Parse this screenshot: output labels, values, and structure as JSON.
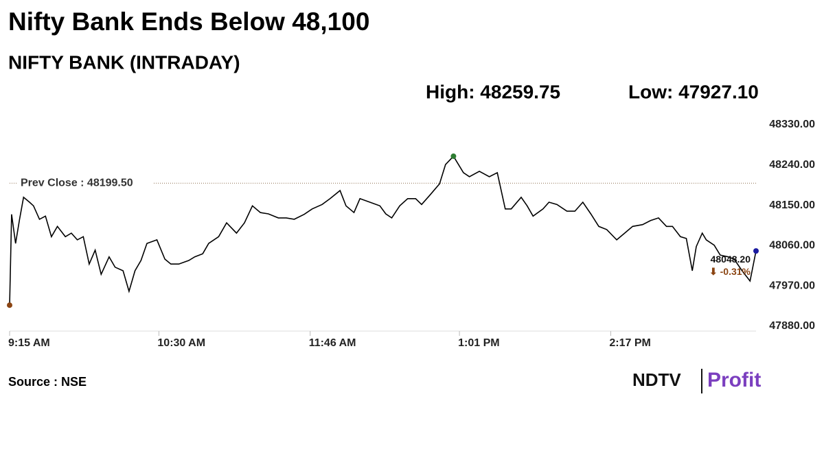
{
  "chart_data": {
    "type": "line",
    "title": "Nifty Bank Ends Below 48,100",
    "subtitle": "NIFTY BANK (INTRADAY)",
    "high_label": "High: 48259.75",
    "low_label": "Low: 47927.10",
    "source": "Source : NSE",
    "logo": [
      "NDTV",
      "Profit"
    ],
    "prev_close": {
      "value": 48199.5,
      "label": "Prev Close : 48199.50"
    },
    "end_label": "48048.20",
    "change_label": "⬇ -0.31%",
    "color": "#000000",
    "high_color": "#2e7d32",
    "low_color": "#8b4513",
    "last_color": "#1a1aa0",
    "x": [
      555,
      556,
      558,
      560,
      562,
      565,
      567,
      570,
      573,
      576,
      579,
      583,
      586,
      589,
      592,
      595,
      598,
      601,
      605,
      608,
      612,
      615,
      618,
      621,
      624,
      629,
      633,
      636,
      640,
      645,
      648,
      652,
      655,
      660,
      664,
      669,
      673,
      677,
      681,
      685,
      690,
      694,
      698,
      703,
      707,
      712,
      716,
      721,
      724,
      728,
      731,
      736,
      741,
      744,
      747,
      751,
      755,
      759,
      762,
      766,
      771,
      774,
      778,
      783,
      786,
      791,
      796,
      800,
      804,
      807,
      812,
      815,
      818,
      823,
      826,
      830,
      835,
      839,
      843,
      847,
      851,
      855,
      860,
      864,
      868,
      873,
      877,
      881,
      885,
      888,
      892,
      895,
      898,
      900,
      903,
      905,
      909,
      912,
      916,
      919,
      923,
      927,
      930
    ],
    "values": [
      47927.1,
      48130,
      48065,
      48119,
      48168,
      48157,
      48149,
      48119,
      48126,
      48080,
      48103,
      48080,
      48088,
      48073,
      48080,
      48019,
      48050,
      47996,
      48035,
      48012,
      48004,
      47958,
      48004,
      48027,
      48065,
      48073,
      48030,
      48019,
      48019,
      48027,
      48035,
      48042,
      48065,
      48080,
      48111,
      48088,
      48111,
      48149,
      48134,
      48131,
      48122,
      48122,
      48119,
      48130,
      48142,
      48152,
      48165,
      48183,
      48149,
      48134,
      48165,
      48157,
      48149,
      48131,
      48122,
      48149,
      48165,
      48165,
      48152,
      48172,
      48198,
      48241,
      48259.75,
      48223,
      48214,
      48226,
      48214,
      48223,
      48142,
      48142,
      48168,
      48149,
      48126,
      48142,
      48157,
      48152,
      48137,
      48137,
      48157,
      48131,
      48103,
      48096,
      48073,
      48088,
      48103,
      48107,
      48116,
      48122,
      48103,
      48103,
      48080,
      48076,
      48004,
      48058,
      48088,
      48073,
      48061,
      48039,
      48035,
      48030,
      48004,
      47981,
      48048.2
    ],
    "xlim": [
      555,
      930
    ],
    "ylim": [
      47880,
      48330
    ],
    "xticks": [
      {
        "value": 555,
        "label": "9:15 AM"
      },
      {
        "value": 630,
        "label": "10:30 AM"
      },
      {
        "value": 706,
        "label": "11:46 AM"
      },
      {
        "value": 781,
        "label": "1:01 PM"
      },
      {
        "value": 857,
        "label": "2:17 PM"
      }
    ],
    "yticks": [
      {
        "value": 47880,
        "label": "47880.00"
      },
      {
        "value": 47970,
        "label": "47970.00"
      },
      {
        "value": 48060,
        "label": "48060.00"
      },
      {
        "value": 48150,
        "label": "48150.00"
      },
      {
        "value": 48240,
        "label": "48240.00"
      },
      {
        "value": 48330,
        "label": "48330.00"
      }
    ]
  }
}
